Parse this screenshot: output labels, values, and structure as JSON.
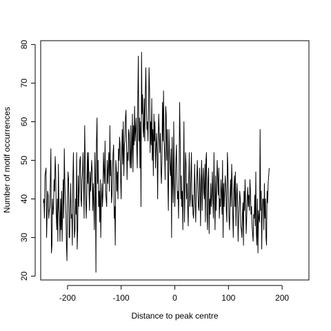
{
  "chart_data": {
    "type": "line",
    "xlabel": "Distance to peak centre",
    "ylabel": "Number of motif occurrences",
    "xlim": [
      -250,
      250
    ],
    "ylim": [
      19,
      81
    ],
    "xticks": [
      -200,
      -100,
      0,
      100,
      200
    ],
    "xtick_labels": [
      "-200",
      "-100",
      "0",
      "100",
      "200"
    ],
    "yticks": [
      20,
      30,
      40,
      50,
      60,
      70,
      80
    ],
    "ytick_labels": [
      "20",
      "30",
      "40",
      "50",
      "60",
      "70",
      "80"
    ],
    "grid": false,
    "line_color": "#000000",
    "series": [
      {
        "x_start": -245,
        "x_step": 1,
        "values": [
          39,
          40,
          35,
          46,
          47,
          48,
          30,
          36,
          42,
          41,
          35,
          37,
          38,
          45,
          53,
          26,
          28,
          40,
          36,
          38,
          45,
          42,
          51,
          47,
          36,
          32,
          40,
          29,
          49,
          38,
          36,
          29,
          40,
          32,
          42,
          29,
          38,
          45,
          35,
          53,
          44,
          40,
          36,
          28,
          24,
          40,
          47,
          45,
          30,
          30,
          38,
          44,
          35,
          36,
          28,
          45,
          52,
          39,
          30,
          32,
          40,
          36,
          52,
          27,
          32,
          46,
          38,
          44,
          50,
          51,
          40,
          38,
          45,
          47,
          52,
          43,
          35,
          59,
          50,
          40,
          35,
          41,
          52,
          44,
          52,
          42,
          37,
          47,
          42,
          46,
          50,
          47,
          37,
          44,
          39,
          32,
          52,
          45,
          21,
          55,
          61,
          44,
          50,
          38,
          42,
          34,
          45,
          30,
          40,
          44,
          38,
          41,
          52,
          47,
          44,
          55,
          42,
          40,
          38,
          50,
          44,
          48,
          52,
          42,
          59,
          46,
          50,
          39,
          41,
          48,
          52,
          54,
          35,
          38,
          28,
          50,
          48,
          42,
          47,
          40,
          53,
          50,
          56,
          54,
          45,
          40,
          52,
          58,
          49,
          60,
          46,
          54,
          55,
          61,
          63,
          55,
          45,
          52,
          50,
          58,
          57,
          50,
          48,
          59,
          48,
          53,
          62,
          47,
          59,
          54,
          64,
          55,
          58,
          61,
          54,
          48,
          66,
          77,
          55,
          61,
          48,
          60,
          38,
          78,
          62,
          67,
          58,
          56,
          66,
          55,
          67,
          74,
          65,
          58,
          60,
          55,
          63,
          74,
          68,
          52,
          60,
          54,
          66,
          50,
          58,
          46,
          62,
          55,
          60,
          48,
          53,
          57,
          52,
          40,
          55,
          62,
          57,
          52,
          57,
          48,
          44,
          50,
          65,
          55,
          68,
          55,
          52,
          45,
          64,
          62,
          50,
          58,
          44,
          37,
          58,
          52,
          48,
          46,
          53,
          30,
          56,
          44,
          39,
          60,
          46,
          38,
          45,
          50,
          54,
          45,
          40,
          42,
          35,
          48,
          65,
          55,
          40,
          46,
          38,
          42,
          32,
          44,
          60,
          34,
          42,
          52,
          49,
          40,
          44,
          38,
          33,
          45,
          52,
          38,
          40,
          46,
          52,
          38,
          41,
          36,
          35,
          42,
          49,
          39,
          34,
          42,
          46,
          50,
          42,
          38,
          37,
          48,
          43,
          33,
          45,
          50,
          37,
          44,
          48,
          42,
          40,
          49,
          34,
          50,
          52,
          36,
          32,
          45,
          48,
          31,
          40,
          36,
          44,
          38,
          41,
          47,
          39,
          35,
          52,
          40,
          32,
          46,
          37,
          42,
          50,
          46,
          41,
          48,
          35,
          40,
          38,
          45,
          42,
          36,
          50,
          30,
          44,
          38,
          42,
          46,
          43,
          37,
          34,
          52,
          48,
          41,
          35,
          32,
          40,
          45,
          38,
          49,
          44,
          36,
          30,
          42,
          46,
          38,
          47,
          33,
          40,
          44,
          39,
          29,
          35,
          38,
          42,
          40,
          33,
          32,
          30,
          36,
          39,
          28,
          42,
          37,
          45,
          39,
          31,
          35,
          40,
          43,
          38,
          41,
          37,
          45,
          42,
          36,
          38,
          33,
          31,
          29,
          36,
          35,
          41,
          33,
          47,
          31,
          28,
          40,
          26,
          37,
          35,
          34,
          58,
          37,
          42,
          27,
          37,
          40,
          40,
          32,
          44,
          35,
          40,
          30,
          28,
          42,
          39,
          44,
          46,
          48
        ]
      }
    ]
  }
}
